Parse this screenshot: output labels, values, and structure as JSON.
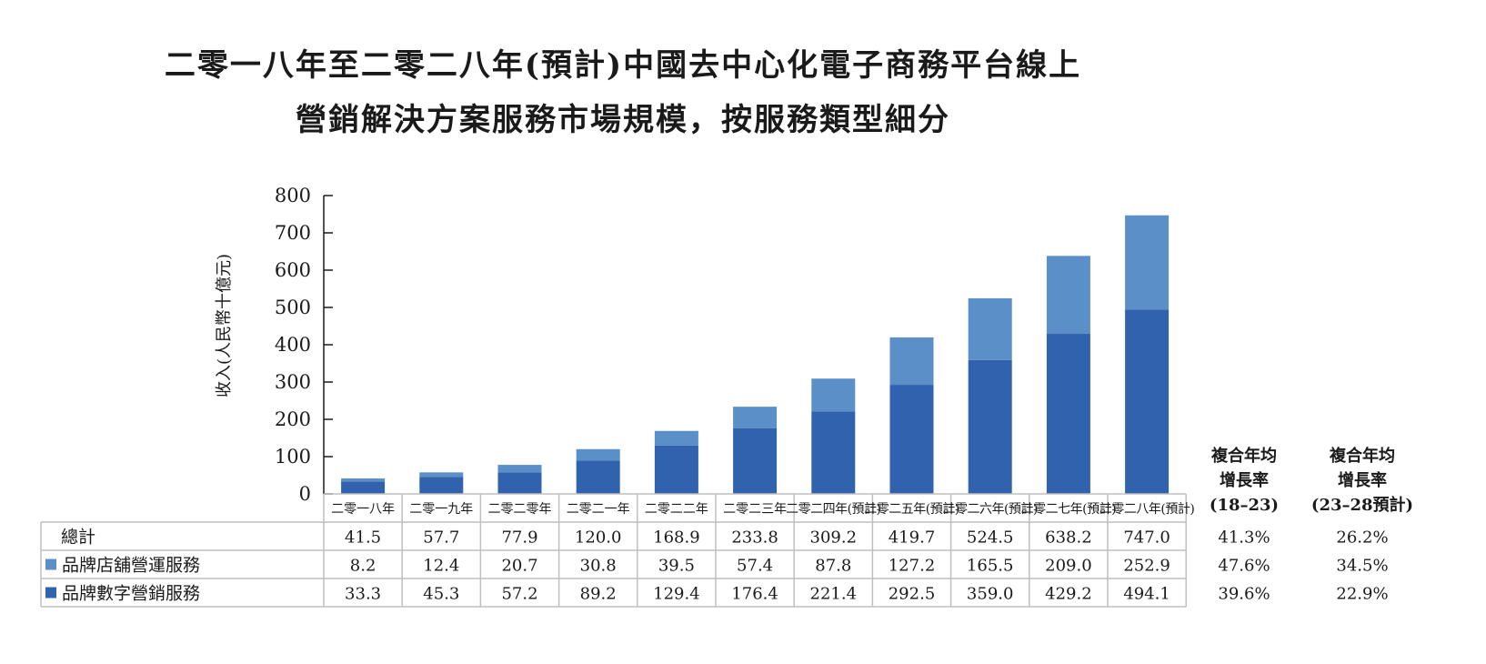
{
  "title_line1": "二零一八年至二零二八年(預計)中國去中心化電子商務平台線上",
  "title_line2": "營銷解決方案服務市場規模，按服務類型細分",
  "colors": {
    "store_ops": "#5b8fc8",
    "digital_marketing": "#3062ad",
    "grid": "#bfbfbf"
  },
  "chart_data": {
    "type": "bar",
    "stacked": true,
    "ylabel": "收入(人民幣十億元)",
    "ylim": [
      0,
      800
    ],
    "yticks": [
      "0",
      "100",
      "200",
      "300",
      "400",
      "500",
      "600",
      "700",
      "800"
    ],
    "categories": [
      "二零一八年",
      "二零一九年",
      "二零二零年",
      "二零二一年",
      "二零二二年",
      "二零二三年",
      "二零二四年(預計)",
      "二零二五年(預計)",
      "二零二六年(預計)",
      "二零二七年(預計)",
      "二零二八年(預計)"
    ],
    "series": [
      {
        "name": "品牌數字營銷服務",
        "values": [
          33.3,
          45.3,
          57.2,
          89.2,
          129.4,
          176.4,
          221.4,
          292.5,
          359.0,
          429.2,
          494.1
        ],
        "labels": [
          "33.3",
          "45.3",
          "57.2",
          "89.2",
          "129.4",
          "176.4",
          "221.4",
          "292.5",
          "359.0",
          "429.2",
          "494.1"
        ]
      },
      {
        "name": "品牌店舖營運服務",
        "values": [
          8.2,
          12.4,
          20.7,
          30.8,
          39.5,
          57.4,
          87.8,
          127.2,
          165.5,
          209.0,
          252.9
        ],
        "labels": [
          "8.2",
          "12.4",
          "20.7",
          "30.8",
          "39.5",
          "57.4",
          "87.8",
          "127.2",
          "165.5",
          "209.0",
          "252.9"
        ]
      }
    ],
    "total": {
      "name": "總計",
      "labels": [
        "41.5",
        "57.7",
        "77.9",
        "120.0",
        "168.9",
        "233.8",
        "309.2",
        "419.7",
        "524.5",
        "638.2",
        "747.0"
      ]
    },
    "cagr": {
      "headers": [
        [
          "複合年均",
          "增長率",
          "(18–23)"
        ],
        [
          "複合年均",
          "增長率",
          "(23–28預計)"
        ]
      ],
      "total": [
        "41.3%",
        "26.2%"
      ],
      "store_ops": [
        "47.6%",
        "34.5%"
      ],
      "digital_marketing": [
        "39.6%",
        "22.9%"
      ]
    }
  }
}
